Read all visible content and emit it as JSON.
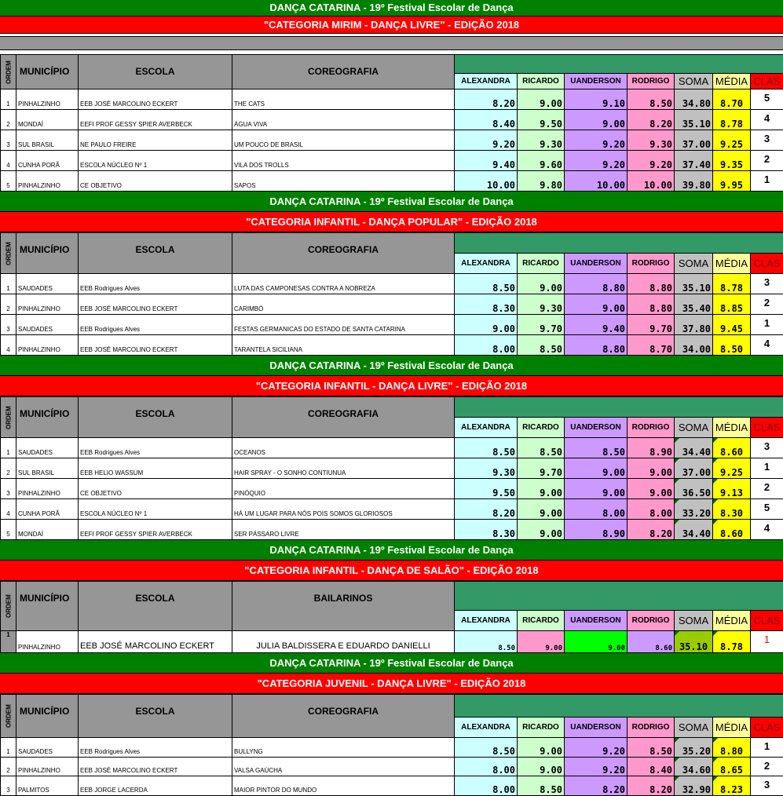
{
  "festival_title": "DANÇA CATARINA - 19º Festival  Escolar de Dança",
  "headers": {
    "ordem": "ORDEM",
    "municipio": "MUNICÍPIO",
    "escola": "ESCOLA",
    "coreografia": "COREOGRAFIA",
    "bailarinos": "BAILARINOS",
    "judges": [
      "ALEXANDRA",
      "RICARDO",
      "UANDERSON",
      "RODRIGO"
    ],
    "soma": "SOMA",
    "media": "MÉDIA",
    "clas": "CLAS"
  },
  "sections": [
    {
      "category": "\"CATEGORIA MIRIM - DANÇA LIVRE\" - EDIÇÃO 2018",
      "third_col": "COREOGRAFIA",
      "rows": [
        {
          "ordem": "1",
          "municipio": "PINHALZINHO",
          "escola": "EEB JOSÉ MARCOLINO ECKERT",
          "obra": "THE CATS",
          "scores": [
            "8.20",
            "9.00",
            "9.10",
            "8.50"
          ],
          "soma": "34.80",
          "media": "8.70",
          "clas": "5"
        },
        {
          "ordem": "2",
          "municipio": "MONDAÍ",
          "escola": "EEFI PROF GESSY SPIER AVERBECK",
          "obra": "ÁGUA VIVA",
          "scores": [
            "8.40",
            "9.50",
            "9.00",
            "8.20"
          ],
          "soma": "35.10",
          "media": "8.78",
          "clas": "4"
        },
        {
          "ordem": "3",
          "municipio": "SUL BRASIL",
          "escola": "NE PAULO FREIRE",
          "obra": "UM POUCO DE BRASIL",
          "scores": [
            "9.20",
            "9.30",
            "9.20",
            "9.30"
          ],
          "soma": "37.00",
          "media": "9.25",
          "clas": "3"
        },
        {
          "ordem": "4",
          "municipio": "CUNHA PORÃ",
          "escola": "ESCOLA NÚCLEO Nº 1",
          "obra": "VILA DOS TROLLS",
          "scores": [
            "9.40",
            "9.60",
            "9.20",
            "9.20"
          ],
          "soma": "37.40",
          "media": "9.35",
          "clas": "2"
        },
        {
          "ordem": "5",
          "municipio": "PINHALZINHO",
          "escola": "CE OBJETIVO",
          "obra": "SAPOS",
          "scores": [
            "10.00",
            "9.80",
            "10.00",
            "10.00"
          ],
          "soma": "39.80",
          "media": "9.95",
          "clas": "1"
        }
      ]
    },
    {
      "category": "\"CATEGORIA INFANTIL - DANÇA POPULAR\" - EDIÇÃO 2018",
      "third_col": "COREOGRAFIA",
      "rows": [
        {
          "ordem": "1",
          "municipio": "SAUDADES",
          "escola": "EEB Rodrigues Alves",
          "obra": "LUTA DAS CAMPONESAS CONTRA A NOBREZA",
          "scores": [
            "8.50",
            "9.00",
            "8.80",
            "8.80"
          ],
          "soma": "35.10",
          "media": "8.78",
          "clas": "3"
        },
        {
          "ordem": "2",
          "municipio": "PINHALZINHO",
          "escola": "EEB JOSÉ MARCOLINO ECKERT",
          "obra": "CARIMBÓ",
          "scores": [
            "8.30",
            "9.30",
            "9.00",
            "8.80"
          ],
          "soma": "35.40",
          "media": "8.85",
          "clas": "2"
        },
        {
          "ordem": "3",
          "municipio": "SAUDADES",
          "escola": "EEB Rodrigues Alves",
          "obra": "FESTAS GERMANICAS DO ESTADO DE SANTA CATARINA",
          "scores": [
            "9.00",
            "9.70",
            "9.40",
            "9.70"
          ],
          "soma": "37.80",
          "media": "9.45",
          "clas": "1"
        },
        {
          "ordem": "4",
          "municipio": "PINHALZINHO",
          "escola": "EEB JOSÉ MARCOLINO ECKERT",
          "obra": "TARANTELA SICILIANA",
          "scores": [
            "8.00",
            "8.50",
            "8.80",
            "8.70"
          ],
          "soma": "34.00",
          "media": "8.50",
          "clas": "4"
        }
      ]
    },
    {
      "category": "\"CATEGORIA INFANTIL - DANÇA LIVRE\" - EDIÇÃO 2018",
      "third_col": "COREOGRAFIA",
      "rows": [
        {
          "ordem": "1",
          "municipio": "SAUDADES",
          "escola": "EEB Rodrigues Alves",
          "obra": "OCEANOS",
          "scores": [
            "8.50",
            "8.50",
            "8.50",
            "8.90"
          ],
          "soma": "34.40",
          "media": "8.60",
          "clas": "3"
        },
        {
          "ordem": "2",
          "municipio": "SUL BRASIL",
          "escola": "EEB HELIO WASSUM",
          "obra": "HAIR SPRAY - O SONHO CONTIUNUA",
          "scores": [
            "9.30",
            "9.70",
            "9.00",
            "9.00"
          ],
          "soma": "37.00",
          "media": "9.25",
          "clas": "1"
        },
        {
          "ordem": "3",
          "municipio": "PINHALZINHO",
          "escola": "CE OBJETIVO",
          "obra": "PINÓQUIO",
          "scores": [
            "9.50",
            "9.00",
            "9.00",
            "9.00"
          ],
          "soma": "36.50",
          "media": "9.13",
          "clas": "2"
        },
        {
          "ordem": "4",
          "municipio": "CUNHA PORÃ",
          "escola": "ESCOLA NÚCLEO Nº 1",
          "obra": "HÁ UM LUGAR PARA NÓS POIS SOMOS GLORIOSOS",
          "scores": [
            "8.20",
            "9.00",
            "8.00",
            "8.00"
          ],
          "soma": "33.20",
          "media": "8.30",
          "clas": "5"
        },
        {
          "ordem": "5",
          "municipio": "MONDAÍ",
          "escola": "EEFI PROF GESSY SPIER AVERBECK",
          "obra": "SER PÁSSARO LIVRE",
          "scores": [
            "8.30",
            "9.00",
            "8.90",
            "8.20"
          ],
          "soma": "34.40",
          "media": "8.60",
          "clas": "4"
        }
      ]
    },
    {
      "category": "\"CATEGORIA INFANTIL - DANÇA DE SALÃO\" - EDIÇÃO 2018",
      "third_col": "BAILARINOS",
      "rows": [
        {
          "ordem": "1",
          "municipio": "PINHALZINHO",
          "escola": "EEB JOSÉ MARCOLINO ECKERT",
          "obra": "JULIA BALDISSERA E EDUARDO DANIELLI",
          "scores": [
            "8.50",
            "9.00",
            "9.00",
            "8.60"
          ],
          "soma": "35.10",
          "media": "8.78",
          "clas": "1"
        }
      ]
    },
    {
      "category": "\"CATEGORIA JUVENIL - DANÇA LIVRE\" - EDIÇÃO 2018",
      "third_col": "COREOGRAFIA",
      "rows": [
        {
          "ordem": "1",
          "municipio": "SAUDADES",
          "escola": "EEB Rodrigues Alves",
          "obra": "BULLYNG",
          "scores": [
            "8.50",
            "9.00",
            "9.20",
            "8.50"
          ],
          "soma": "35.20",
          "media": "8.80",
          "clas": "1"
        },
        {
          "ordem": "2",
          "municipio": "PINHALZINHO",
          "escola": "EEB JOSÉ MARCOLINO ECKERT",
          "obra": "VALSA GAÚCHA",
          "scores": [
            "8.00",
            "9.00",
            "9.20",
            "8.40"
          ],
          "soma": "34.60",
          "media": "8.65",
          "clas": "2"
        },
        {
          "ordem": "3",
          "municipio": "PALMITOS",
          "escola": "EEB JORGE LACERDA",
          "obra": "MAIOR PINTOR DO MUNDO",
          "scores": [
            "8.00",
            "8.50",
            "8.20",
            "8.20"
          ],
          "soma": "32.90",
          "media": "8.23",
          "clas": "3"
        }
      ]
    }
  ]
}
